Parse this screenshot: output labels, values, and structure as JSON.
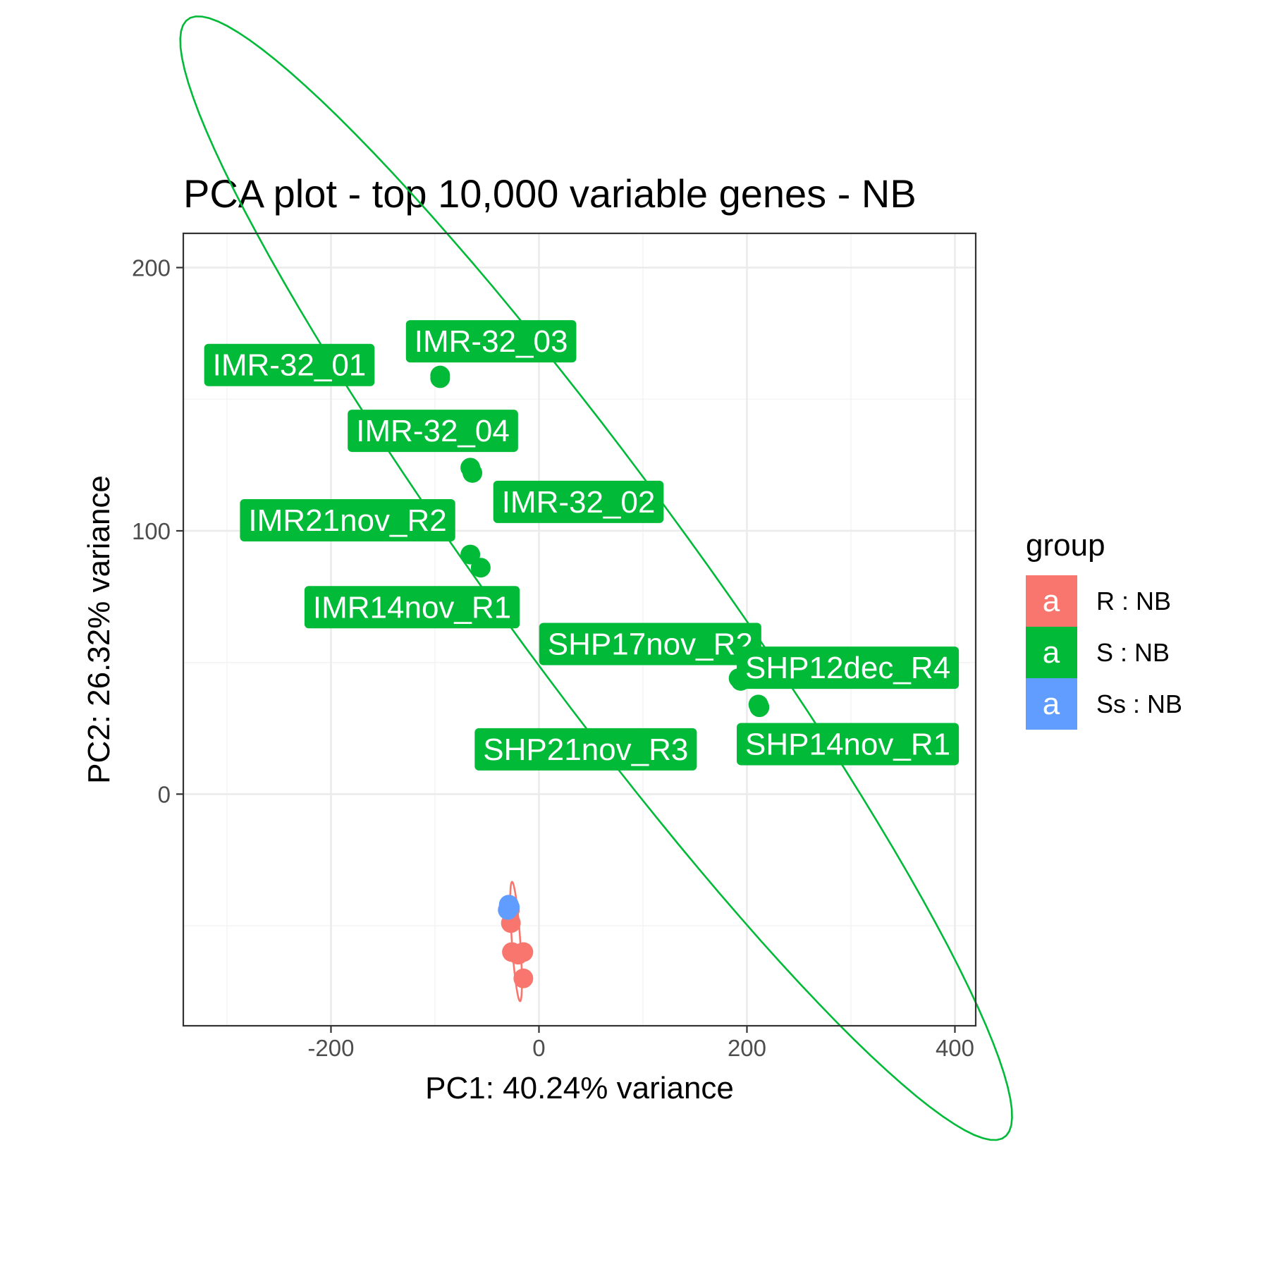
{
  "chart_data": {
    "type": "scatter",
    "title": "PCA plot - top 10,000 variable genes - NB",
    "xlabel": "PC1: 40.24% variance",
    "ylabel": "PC2: 26.32% variance",
    "xlim": [
      -342,
      420
    ],
    "ylim": [
      -88,
      213
    ],
    "x_ticks": [
      -200,
      0,
      200,
      400
    ],
    "x_tick_labels": [
      "-200",
      "0",
      "200",
      "400"
    ],
    "y_ticks": [
      0,
      100,
      200
    ],
    "y_tick_labels": [
      "0",
      "100",
      "200"
    ],
    "grid": true,
    "legend": {
      "title": "group",
      "position": "right",
      "key_glyph": "a",
      "entries": [
        {
          "label": "R : NB",
          "color": "#F8766D"
        },
        {
          "label": "S : NB",
          "color": "#00BA38"
        },
        {
          "label": "Ss : NB",
          "color": "#619CFF"
        }
      ]
    },
    "series": [
      {
        "group": "R : NB",
        "color": "#F8766D",
        "points": [
          {
            "x": -28,
            "y": -44
          },
          {
            "x": -27,
            "y": -49
          },
          {
            "x": -26,
            "y": -60
          },
          {
            "x": -20,
            "y": -61
          },
          {
            "x": -15,
            "y": -60
          },
          {
            "x": -15,
            "y": -70
          }
        ],
        "ellipse": {
          "cx": -22,
          "cy": -56,
          "rx": 23,
          "ry": 4,
          "angle": -80
        }
      },
      {
        "group": "S : NB",
        "color": "#00BA38",
        "points": [
          {
            "x": -95,
            "y": 159,
            "label": "IMR-32_03"
          },
          {
            "x": -95,
            "y": 158,
            "label": "IMR-32_01"
          },
          {
            "x": -66,
            "y": 124,
            "label": "IMR-32_04"
          },
          {
            "x": -64,
            "y": 122,
            "label": "IMR-32_02"
          },
          {
            "x": -66,
            "y": 91,
            "label": "IMR21nov_R2"
          },
          {
            "x": -56,
            "y": 86,
            "label": "IMR14nov_R1"
          },
          {
            "x": 192,
            "y": 44,
            "label": "SHP17nov_R2"
          },
          {
            "x": 194,
            "y": 43,
            "label": "SHP12dec_R4"
          },
          {
            "x": 211,
            "y": 34,
            "label": "SHP14nov_R1"
          },
          {
            "x": 212,
            "y": 33,
            "label": "SHP21nov_R3"
          }
        ],
        "ellipse": {
          "cx": 55,
          "cy": 82,
          "rx": 450,
          "ry": 55,
          "angle": -27.5
        }
      },
      {
        "group": "Ss : NB",
        "color": "#619CFF",
        "points": [
          {
            "x": -29,
            "y": -42
          },
          {
            "x": -28,
            "y": -43
          },
          {
            "x": -30,
            "y": -44
          }
        ],
        "ellipse": {
          "cx": -29,
          "cy": -43,
          "rx": 4,
          "ry": 1.5,
          "angle": -70
        }
      }
    ]
  },
  "point_label_positions": [
    {
      "label": "IMR-32_01",
      "x": -240,
      "y": 163
    },
    {
      "label": "IMR-32_03",
      "x": -46,
      "y": 172
    },
    {
      "label": "IMR-32_04",
      "x": -102,
      "y": 138
    },
    {
      "label": "IMR-32_02",
      "x": 38,
      "y": 111
    },
    {
      "label": "IMR21nov_R2",
      "x": -184,
      "y": 104
    },
    {
      "label": "IMR14nov_R1",
      "x": -122,
      "y": 71
    },
    {
      "label": "SHP17nov_R2",
      "x": 107,
      "y": 57
    },
    {
      "label": "SHP12dec_R4",
      "x": 297,
      "y": 48
    },
    {
      "label": "SHP14nov_R1",
      "x": 297,
      "y": 19
    },
    {
      "label": "SHP21nov_R3",
      "x": 45,
      "y": 17
    }
  ]
}
